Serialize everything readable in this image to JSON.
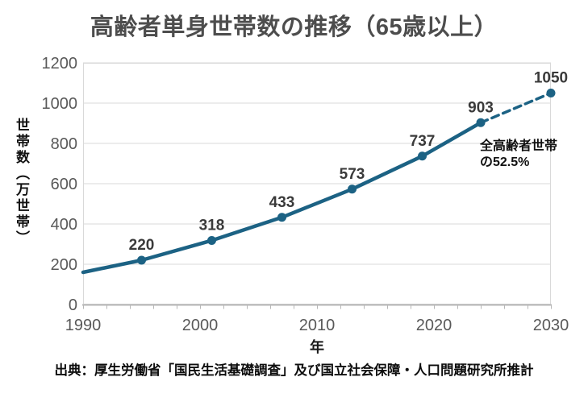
{
  "title": "高齢者単身世帯数の推移（65歳以上）",
  "y_axis_title": "世帯数（万世帯）",
  "x_axis_title": "年",
  "source": "出典：厚生労働省「国民生活基礎調査」及び国立社会保障・人口問題研究所推計",
  "annotation": {
    "line1": "全高齢者世帯",
    "line2": "の52.5%"
  },
  "colors": {
    "line": "#1c6284",
    "grid": "#d9d9d9",
    "axis": "#b7b7b7",
    "tick_label": "#595959",
    "data_label": "#3a3a3a",
    "title": "#4d4d4d",
    "text": "#111111"
  },
  "chart_data": {
    "type": "line",
    "title": "高齢者単身世帯数の推移（65歳以上）",
    "xlabel": "年",
    "ylabel": "世帯数（万世帯）",
    "xlim": [
      1990,
      2030
    ],
    "ylim": [
      0,
      1200
    ],
    "x_ticks": [
      1990,
      2000,
      2010,
      2020,
      2030
    ],
    "x_minor_tick_step": 2,
    "y_ticks": [
      0,
      200,
      400,
      600,
      800,
      1000,
      1200
    ],
    "grid": "horizontal",
    "legend": "none",
    "annotation": "全高齢者世帯の52.5%",
    "series": [
      {
        "name": "高齢者単身世帯数",
        "points": [
          {
            "x": 1990,
            "y": 160,
            "marker": false,
            "label": "",
            "projected": false
          },
          {
            "x": 1995,
            "y": 220,
            "marker": true,
            "label": "220",
            "projected": false
          },
          {
            "x": 2001,
            "y": 318,
            "marker": true,
            "label": "318",
            "projected": false
          },
          {
            "x": 2007,
            "y": 433,
            "marker": true,
            "label": "433",
            "projected": false
          },
          {
            "x": 2013,
            "y": 573,
            "marker": true,
            "label": "573",
            "projected": false
          },
          {
            "x": 2019,
            "y": 737,
            "marker": true,
            "label": "737",
            "projected": false
          },
          {
            "x": 2024,
            "y": 903,
            "marker": true,
            "label": "903",
            "projected": false
          },
          {
            "x": 2030,
            "y": 1050,
            "marker": true,
            "label": "1050",
            "projected": true
          }
        ]
      }
    ]
  }
}
